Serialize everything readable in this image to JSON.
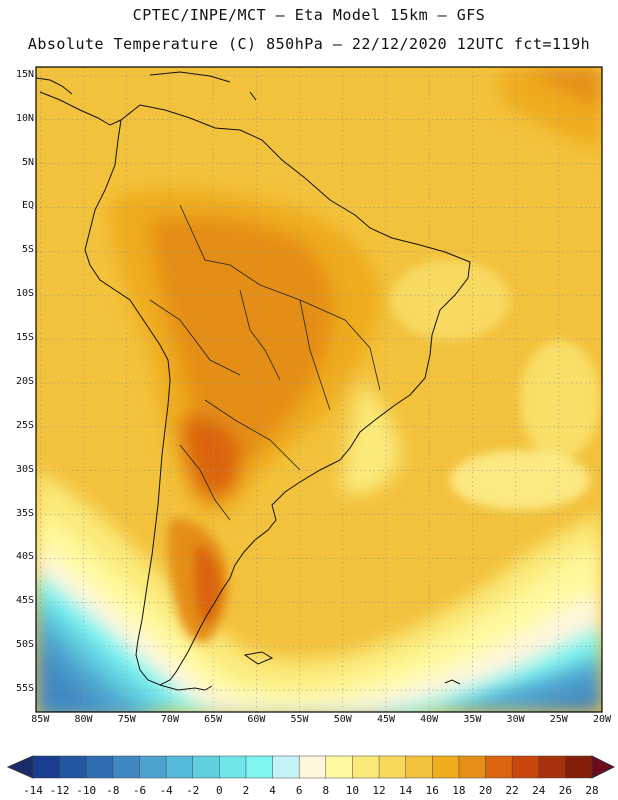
{
  "header": {
    "line1": "CPTEC/INPE/MCT –  Eta Model 15km – GFS",
    "line2": "Absolute Temperature (C) 850hPa – 22/12/2020 12UTC fct=119h"
  },
  "map": {
    "lat_labels": [
      "15N",
      "10N",
      "5N",
      "EQ",
      "5S",
      "10S",
      "15S",
      "20S",
      "25S",
      "30S",
      "35S",
      "40S",
      "45S",
      "50S",
      "55S"
    ],
    "lon_labels": [
      "85W",
      "80W",
      "75W",
      "70W",
      "65W",
      "60W",
      "55W",
      "50W",
      "45W",
      "40W",
      "35W",
      "30W",
      "25W",
      "20W"
    ],
    "extent": {
      "lon_min": -85.5,
      "lon_max": -20,
      "lat_min": -57.5,
      "lat_max": 16
    }
  },
  "colorbar": {
    "labels": [
      "-14",
      "-12",
      "-10",
      "-8",
      "-6",
      "-4",
      "-2",
      "0",
      "2",
      "4",
      "6",
      "8",
      "10",
      "12",
      "14",
      "16",
      "18",
      "20",
      "22",
      "24",
      "26",
      "28"
    ],
    "colors": [
      "#1a3d8f",
      "#2355a0",
      "#2f6db0",
      "#3f88c2",
      "#4da3cf",
      "#55bad9",
      "#5fd0e0",
      "#6ee6ea",
      "#7ff5f2",
      "#c6f3f7",
      "#fff7dc",
      "#fffaa0",
      "#fbea7a",
      "#f8d85c",
      "#f3c23c",
      "#efac1c",
      "#e58e18",
      "#dc6410",
      "#c8470c",
      "#a8300a",
      "#84200a"
    ],
    "low_arrow_color": "#1b2c6e",
    "high_arrow_color": "#6d0a1c"
  }
}
